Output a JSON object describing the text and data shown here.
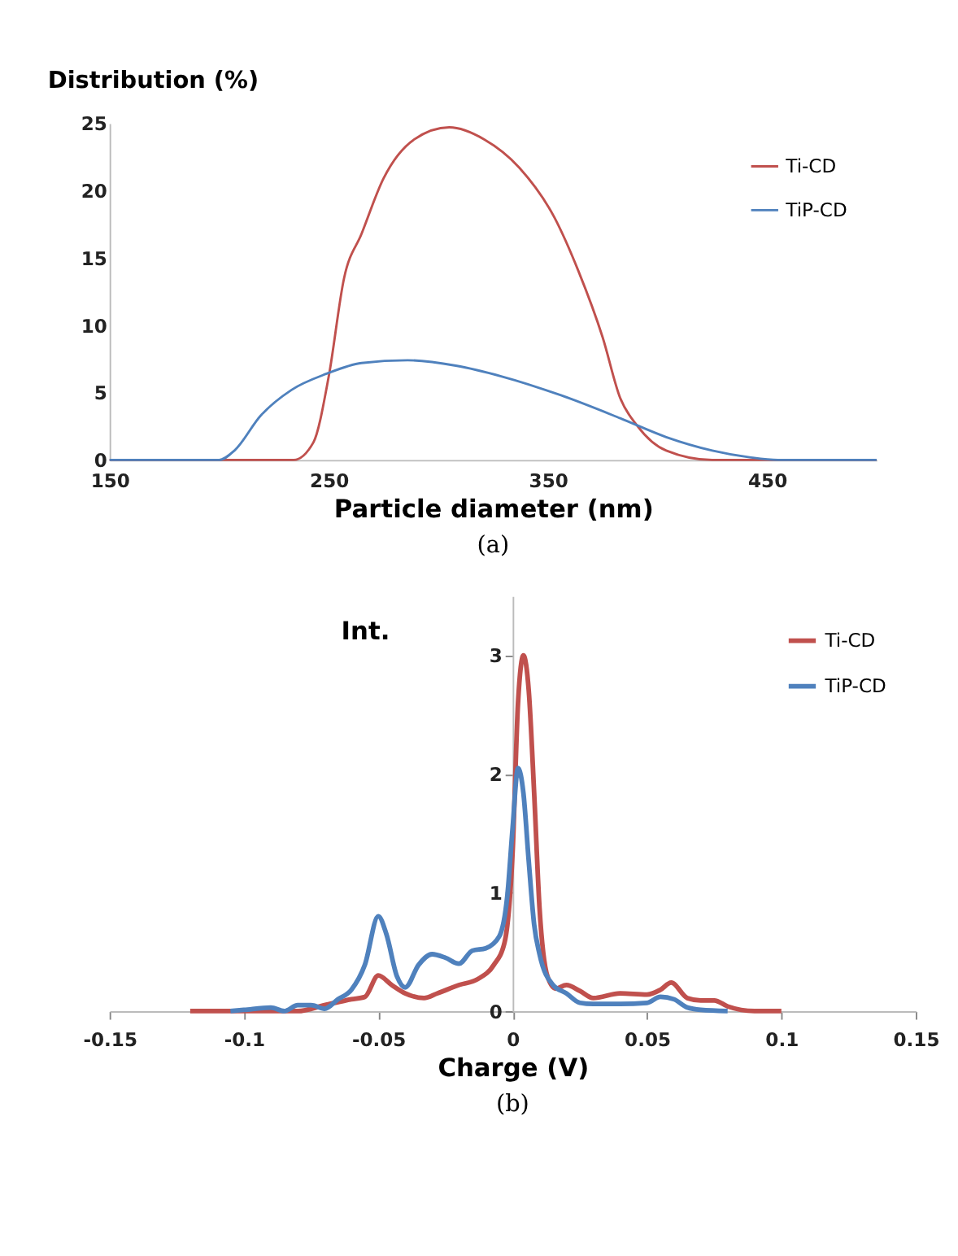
{
  "chart_data": [
    {
      "type": "line",
      "xlabel": "Particle diameter (nm)",
      "ylabel": "Distribution (%)",
      "xlim": [
        150,
        500
      ],
      "xticks": [
        150,
        250,
        350,
        450
      ],
      "ylim": [
        0,
        25
      ],
      "yticks": [
        0,
        5,
        10,
        15,
        20,
        25
      ],
      "grid": false,
      "legend": "top right",
      "marker": "none",
      "line_style": "solid",
      "annotations": [
        "(a)"
      ],
      "series": [
        {
          "name": "Ti-CD",
          "color": "#c0504d",
          "x": [
            150,
            200,
            234,
            243,
            250,
            257,
            265,
            275,
            289,
            305,
            321,
            337,
            353,
            364,
            375,
            383,
            391,
            404,
            425,
            500
          ],
          "values": [
            0,
            0,
            0,
            1.3,
            6.2,
            13.5,
            16.8,
            20.9,
            23.8,
            24.7,
            23.8,
            21.7,
            18,
            14,
            9.1,
            4.6,
            2.5,
            0.7,
            0,
            0
          ]
        },
        {
          "name": "TiP-CD",
          "color": "#4f81bd",
          "x": [
            150,
            200,
            207,
            219,
            233,
            249,
            265,
            286,
            308,
            329,
            356,
            383,
            404,
            425,
            442,
            455,
            500
          ],
          "values": [
            0,
            0,
            0.7,
            3.3,
            5.2,
            6.4,
            7.2,
            7.4,
            7.0,
            6.2,
            4.8,
            3.1,
            1.7,
            0.7,
            0.2,
            0,
            0
          ]
        }
      ]
    },
    {
      "type": "line",
      "xlabel": "Charge (V)",
      "ylabel": "Int.",
      "xlim": [
        -0.15,
        0.15
      ],
      "xticks": [
        -0.15,
        -0.1,
        -0.05,
        0,
        0.05,
        0.1,
        0.15
      ],
      "ylim": [
        0,
        3.5
      ],
      "yticks": [
        0,
        1,
        2,
        3
      ],
      "grid": false,
      "legend": "top right",
      "marker": "none",
      "line_style": "solid",
      "annotations": [
        "(b)"
      ],
      "series": [
        {
          "name": "Ti-CD",
          "color": "#c0504d",
          "x": [
            -0.12,
            -0.1,
            -0.08,
            -0.07,
            -0.06,
            -0.055,
            -0.05,
            -0.045,
            -0.04,
            -0.033,
            -0.028,
            -0.02,
            -0.013,
            -0.007,
            -0.003,
            0,
            0.002,
            0.004,
            0.006,
            0.008,
            0.01,
            0.013,
            0.016,
            0.02,
            0.025,
            0.03,
            0.04,
            0.05,
            0.055,
            0.059,
            0.065,
            0.07,
            0.075,
            0.08,
            0.09,
            0.1
          ],
          "values": [
            0,
            0,
            0,
            0.05,
            0.1,
            0.12,
            0.3,
            0.22,
            0.15,
            0.11,
            0.15,
            0.22,
            0.27,
            0.39,
            0.58,
            1.35,
            2.6,
            3.0,
            2.7,
            1.84,
            0.87,
            0.29,
            0.19,
            0.22,
            0.17,
            0.11,
            0.15,
            0.14,
            0.18,
            0.24,
            0.11,
            0.09,
            0.09,
            0.04,
            0,
            0
          ]
        },
        {
          "name": "TiP-CD",
          "color": "#4f81bd",
          "x": [
            -0.105,
            -0.1,
            -0.09,
            -0.085,
            -0.08,
            -0.075,
            -0.07,
            -0.065,
            -0.06,
            -0.055,
            -0.05,
            -0.047,
            -0.043,
            -0.04,
            -0.035,
            -0.03,
            -0.025,
            -0.02,
            -0.015,
            -0.01,
            -0.005,
            -0.002,
            0,
            0.002,
            0.004,
            0.006,
            0.008,
            0.01,
            0.015,
            0.02,
            0.025,
            0.03,
            0.04,
            0.05,
            0.055,
            0.06,
            0.065,
            0.07,
            0.08
          ],
          "values": [
            0,
            0.01,
            0.03,
            0,
            0.05,
            0.05,
            0.02,
            0.1,
            0.18,
            0.39,
            0.8,
            0.65,
            0.29,
            0.2,
            0.39,
            0.48,
            0.45,
            0.4,
            0.51,
            0.53,
            0.63,
            0.97,
            1.55,
            2.05,
            1.84,
            1.26,
            0.73,
            0.48,
            0.22,
            0.15,
            0.07,
            0.06,
            0.06,
            0.07,
            0.12,
            0.1,
            0.03,
            0.01,
            0
          ]
        }
      ]
    }
  ]
}
